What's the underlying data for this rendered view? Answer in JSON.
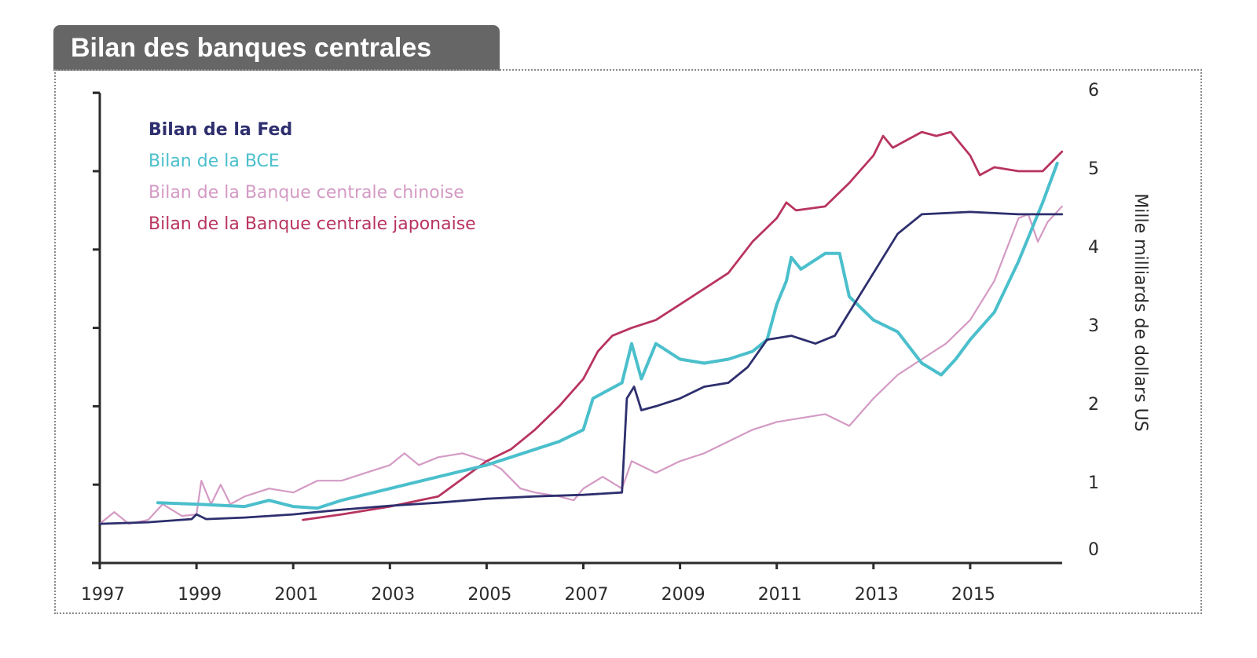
{
  "title": "Bilan des banques centrales",
  "chart_data": {
    "type": "line",
    "title": "Bilan des banques centrales",
    "xlabel": "",
    "ylabel": "Mille milliards de dollars US",
    "y_axis_side": "right",
    "xlim": [
      1997,
      2016.9
    ],
    "ylim": [
      0,
      6
    ],
    "x_ticks": [
      1997,
      1999,
      2001,
      2003,
      2005,
      2007,
      2009,
      2011,
      2013,
      2015
    ],
    "x_tick_labels": [
      "1997",
      "1999",
      "2001",
      "2003",
      "2005",
      "2007",
      "2009",
      "2011",
      "2013",
      "2015"
    ],
    "y_ticks": [
      0,
      1,
      2,
      3,
      4,
      5,
      6
    ],
    "y_tick_labels": [
      "0",
      "1",
      "2",
      "3",
      "4",
      "5",
      "6"
    ],
    "grid": false,
    "legend_position": "top-left",
    "series": [
      {
        "name": "Bilan de la Fed",
        "color": "#2e2f6e",
        "x": [
          1997,
          1998,
          1998.9,
          1999.0,
          1999.2,
          2000,
          2001,
          2002,
          2003,
          2004,
          2005,
          2006,
          2007,
          2007.8,
          2007.9,
          2008.05,
          2008.2,
          2008.5,
          2009,
          2009.5,
          2010,
          2010.4,
          2010.8,
          2011.3,
          2011.8,
          2012.2,
          2012.5,
          2013,
          2013.5,
          2014,
          2015,
          2016,
          2016.9
        ],
        "values": [
          0.5,
          0.52,
          0.56,
          0.62,
          0.56,
          0.58,
          0.62,
          0.68,
          0.73,
          0.77,
          0.82,
          0.85,
          0.87,
          0.9,
          2.1,
          2.25,
          1.95,
          2.0,
          2.1,
          2.25,
          2.3,
          2.5,
          2.85,
          2.9,
          2.8,
          2.9,
          3.2,
          3.7,
          4.2,
          4.45,
          4.48,
          4.45,
          4.45
        ]
      },
      {
        "name": "Bilan de la BCE",
        "color": "#4bbfcc",
        "x": [
          1998.2,
          1999,
          2000,
          2000.5,
          2001,
          2001.5,
          2002,
          2003,
          2004,
          2005,
          2005.5,
          2006,
          2006.5,
          2007,
          2007.2,
          2007.5,
          2007.8,
          2008,
          2008.2,
          2008.5,
          2009,
          2009.5,
          2010,
          2010.5,
          2010.8,
          2011,
          2011.2,
          2011.3,
          2011.5,
          2012,
          2012.3,
          2012.5,
          2013,
          2013.5,
          2014,
          2014.4,
          2014.7,
          2015,
          2015.5,
          2016,
          2016.5,
          2016.8
        ],
        "values": [
          0.77,
          0.75,
          0.72,
          0.8,
          0.72,
          0.7,
          0.8,
          0.95,
          1.1,
          1.25,
          1.35,
          1.45,
          1.55,
          1.7,
          2.1,
          2.2,
          2.3,
          2.8,
          2.35,
          2.8,
          2.6,
          2.55,
          2.6,
          2.7,
          2.85,
          3.3,
          3.6,
          3.9,
          3.75,
          3.95,
          3.95,
          3.4,
          3.1,
          2.95,
          2.55,
          2.4,
          2.6,
          2.85,
          3.2,
          3.85,
          4.6,
          5.1
        ]
      },
      {
        "name": "Bilan de la Banque centrale chinoise",
        "color": "#d49ac4",
        "x": [
          1997,
          1997.3,
          1997.6,
          1998,
          1998.3,
          1998.7,
          1999,
          1999.1,
          1999.3,
          1999.5,
          1999.7,
          2000,
          2000.5,
          2001,
          2001.5,
          2002,
          2002.5,
          2003,
          2003.3,
          2003.6,
          2004,
          2004.5,
          2005,
          2005.3,
          2005.7,
          2006,
          2006.5,
          2006.8,
          2007,
          2007.4,
          2007.8,
          2008,
          2008.5,
          2009,
          2009.5,
          2010,
          2010.5,
          2011,
          2011.5,
          2012,
          2012.5,
          2013,
          2013.5,
          2014,
          2014.5,
          2015,
          2015.5,
          2016,
          2016.2,
          2016.4,
          2016.6,
          2016.9
        ],
        "values": [
          0.5,
          0.65,
          0.5,
          0.55,
          0.75,
          0.6,
          0.62,
          1.05,
          0.75,
          1.0,
          0.75,
          0.85,
          0.95,
          0.9,
          1.05,
          1.05,
          1.15,
          1.25,
          1.4,
          1.25,
          1.35,
          1.4,
          1.3,
          1.2,
          0.95,
          0.9,
          0.85,
          0.8,
          0.95,
          1.1,
          0.95,
          1.3,
          1.15,
          1.3,
          1.4,
          1.55,
          1.7,
          1.8,
          1.85,
          1.9,
          1.75,
          2.1,
          2.4,
          2.6,
          2.8,
          3.1,
          3.6,
          4.4,
          4.45,
          4.1,
          4.35,
          4.55
        ]
      },
      {
        "name": "Bilan de la Banque centrale japonaise",
        "color": "#b8345e",
        "x": [
          2001.2,
          2002,
          2003,
          2004,
          2005,
          2005.5,
          2006,
          2006.5,
          2007,
          2007.3,
          2007.6,
          2008,
          2008.5,
          2009,
          2009.5,
          2010,
          2010.5,
          2011,
          2011.2,
          2011.4,
          2012,
          2012.5,
          2013,
          2013.2,
          2013.4,
          2014,
          2014.3,
          2014.6,
          2015,
          2015.2,
          2015.5,
          2016,
          2016.5,
          2016.9
        ],
        "values": [
          0.55,
          0.62,
          0.72,
          0.85,
          1.3,
          1.45,
          1.7,
          2.0,
          2.35,
          2.7,
          2.9,
          3.0,
          3.1,
          3.3,
          3.5,
          3.7,
          4.1,
          4.4,
          4.6,
          4.5,
          4.55,
          4.85,
          5.2,
          5.45,
          5.3,
          5.5,
          5.45,
          5.5,
          5.2,
          4.95,
          5.05,
          5.0,
          5.0,
          5.25
        ]
      }
    ]
  }
}
